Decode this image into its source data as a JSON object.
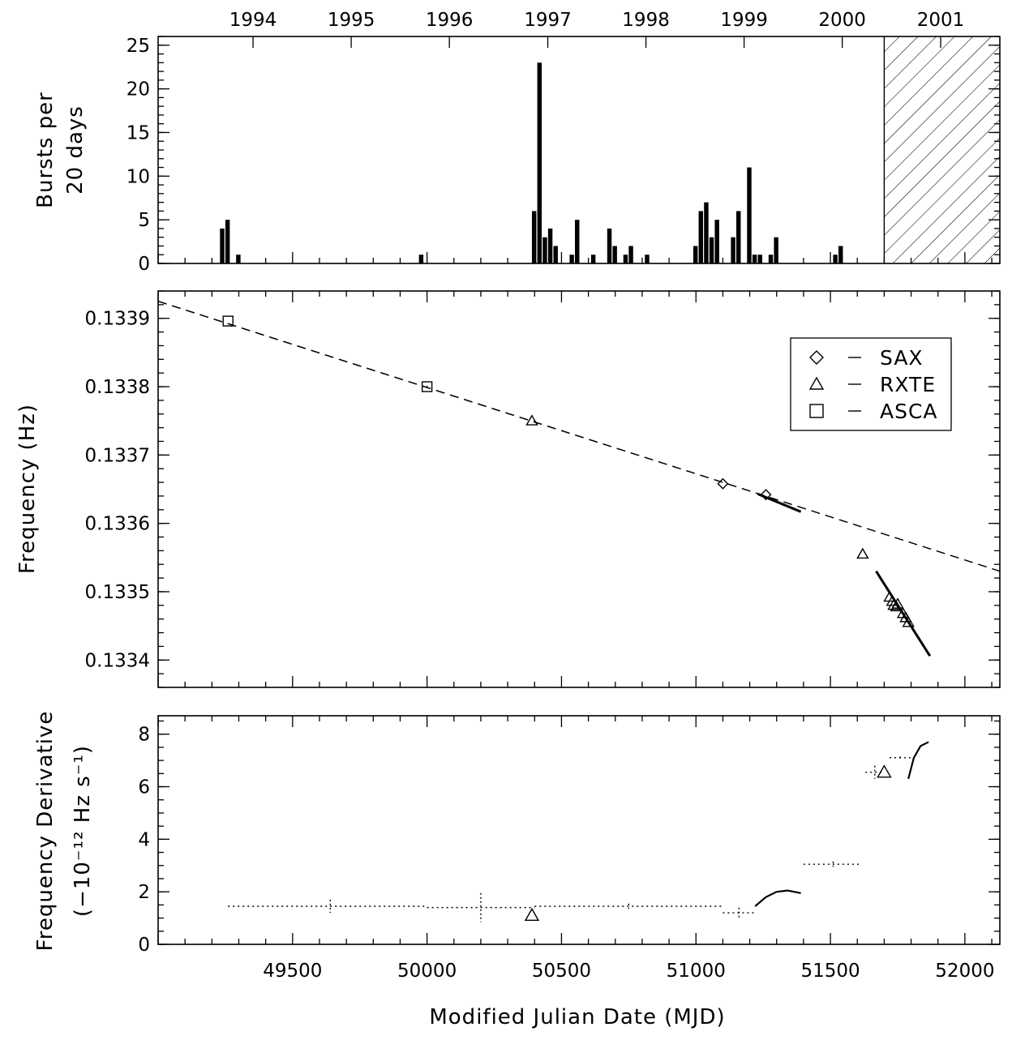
{
  "chart_data": [
    {
      "type": "bar",
      "panel": "top",
      "ylabel_lines": [
        "Bursts per",
        "20 days"
      ],
      "ylim": [
        0,
        26
      ],
      "yticks": [
        0,
        5,
        10,
        15,
        20,
        25
      ],
      "xlim": [
        49000,
        52130
      ],
      "top_axis_years": [
        "1994",
        "1995",
        "1996",
        "1997",
        "1998",
        "1999",
        "2000",
        "2001"
      ],
      "top_axis_year_mjd": [
        49353,
        49718,
        50083,
        50449,
        50814,
        51179,
        51544,
        51910
      ],
      "bars": [
        {
          "x": 49230,
          "value": 4
        },
        {
          "x": 49250,
          "value": 5
        },
        {
          "x": 49290,
          "value": 1
        },
        {
          "x": 49970,
          "value": 1
        },
        {
          "x": 50390,
          "value": 6
        },
        {
          "x": 50410,
          "value": 23
        },
        {
          "x": 50430,
          "value": 3
        },
        {
          "x": 50450,
          "value": 4
        },
        {
          "x": 50470,
          "value": 2
        },
        {
          "x": 50530,
          "value": 1
        },
        {
          "x": 50550,
          "value": 5
        },
        {
          "x": 50610,
          "value": 1
        },
        {
          "x": 50670,
          "value": 4
        },
        {
          "x": 50690,
          "value": 2
        },
        {
          "x": 50730,
          "value": 1
        },
        {
          "x": 50750,
          "value": 2
        },
        {
          "x": 50810,
          "value": 1
        },
        {
          "x": 50990,
          "value": 2
        },
        {
          "x": 51010,
          "value": 6
        },
        {
          "x": 51030,
          "value": 7
        },
        {
          "x": 51050,
          "value": 3
        },
        {
          "x": 51070,
          "value": 5
        },
        {
          "x": 51130,
          "value": 3
        },
        {
          "x": 51150,
          "value": 6
        },
        {
          "x": 51190,
          "value": 11
        },
        {
          "x": 51210,
          "value": 1
        },
        {
          "x": 51230,
          "value": 1
        },
        {
          "x": 51270,
          "value": 1
        },
        {
          "x": 51290,
          "value": 3
        },
        {
          "x": 51510,
          "value": 1
        },
        {
          "x": 51530,
          "value": 2
        }
      ],
      "hatched_region": [
        51700,
        52130
      ]
    },
    {
      "type": "scatter",
      "panel": "middle",
      "ylabel": "Frequency (Hz)",
      "ylim": [
        0.13336,
        0.13394
      ],
      "yticks": [
        0.1334,
        0.1335,
        0.1336,
        0.1337,
        0.1338,
        0.1339
      ],
      "yticklabels": [
        "0.1334",
        "0.1335",
        "0.1336",
        "0.1337",
        "0.1338",
        "0.1339"
      ],
      "xlim": [
        49000,
        52130
      ],
      "legend": {
        "position": "top-right",
        "entries": [
          {
            "marker": "diamond",
            "label": "SAX"
          },
          {
            "marker": "triangle",
            "label": "RXTE"
          },
          {
            "marker": "square",
            "label": "ASCA"
          }
        ]
      },
      "series": [
        {
          "name": "SAX",
          "marker": "diamond",
          "points": [
            {
              "x": 51100,
              "y": 0.133658
            },
            {
              "x": 51260,
              "y": 0.133642
            }
          ]
        },
        {
          "name": "RXTE",
          "marker": "triangle",
          "points": [
            {
              "x": 50390,
              "y": 0.13375
            },
            {
              "x": 51620,
              "y": 0.133555
            },
            {
              "x": 51720,
              "y": 0.133492
            },
            {
              "x": 51730,
              "y": 0.133486
            },
            {
              "x": 51735,
              "y": 0.13348
            },
            {
              "x": 51745,
              "y": 0.133478
            },
            {
              "x": 51750,
              "y": 0.133482
            },
            {
              "x": 51770,
              "y": 0.133468
            },
            {
              "x": 51780,
              "y": 0.133462
            },
            {
              "x": 51790,
              "y": 0.133455
            }
          ]
        },
        {
          "name": "ASCA",
          "marker": "square",
          "points": [
            {
              "x": 49260,
              "y": 0.133896
            },
            {
              "x": 50000,
              "y": 0.1338,
              "yerr": 1.5e-06
            }
          ]
        }
      ],
      "dashed_fit": [
        [
          49000,
          0.133925
        ],
        [
          52130,
          0.13353
        ]
      ],
      "solid_fits": [
        [
          [
            51230,
            0.133643
          ],
          [
            51390,
            0.133617
          ]
        ],
        [
          [
            51670,
            0.13353
          ],
          [
            51870,
            0.133406
          ]
        ]
      ]
    },
    {
      "type": "line",
      "panel": "bottom",
      "xlabel": "Modified Julian Date (MJD)",
      "ylabel_lines": [
        "Frequency Derivative",
        "(−10⁻¹² Hz s⁻¹)"
      ],
      "ylim": [
        0,
        8.7
      ],
      "yticks": [
        0,
        2,
        4,
        6,
        8
      ],
      "xlim": [
        49000,
        52130
      ],
      "xticks": [
        49500,
        50000,
        50500,
        51000,
        51500,
        52000
      ],
      "dotted_segments": [
        {
          "x": [
            49260,
            50000
          ],
          "y": 1.45,
          "xmark": 49640,
          "yerr": 0.25
        },
        {
          "x": [
            50000,
            50400
          ],
          "y": 1.4,
          "xmark": 50200,
          "yerr": 0.55
        },
        {
          "x": [
            50400,
            51100
          ],
          "y": 1.45,
          "xmark": 50750,
          "yerr": 0.1
        },
        {
          "x": [
            51100,
            51220
          ],
          "y": 1.2,
          "xmark": 51160,
          "yerr": 0.2
        },
        {
          "x": [
            51400,
            51610
          ],
          "y": 3.05,
          "xmark": 51510,
          "yerr": 0.1
        },
        {
          "x": [
            51630,
            51700
          ],
          "y": 6.55,
          "xmark": 51665,
          "yerr": 0.25
        },
        {
          "x": [
            51720,
            51800
          ],
          "y": 7.1,
          "xmark": 51760,
          "yerr": 0.05
        }
      ],
      "solid_curves": [
        [
          [
            51220,
            1.45
          ],
          [
            51260,
            1.8
          ],
          [
            51300,
            2.0
          ],
          [
            51340,
            2.05
          ],
          [
            51390,
            1.95
          ]
        ],
        [
          [
            51790,
            6.3
          ],
          [
            51810,
            7.1
          ],
          [
            51835,
            7.55
          ],
          [
            51865,
            7.7
          ]
        ]
      ],
      "triangles": [
        {
          "x": 50390,
          "y": 1.1
        },
        {
          "x": 51700,
          "y": 6.55
        }
      ]
    }
  ]
}
